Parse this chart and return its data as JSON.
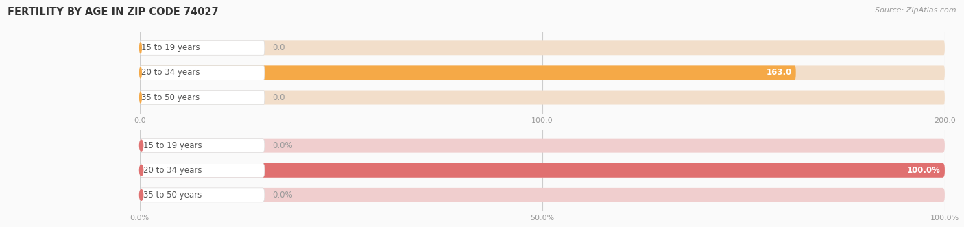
{
  "title": "FERTILITY BY AGE IN ZIP CODE 74027",
  "source_text": "Source: ZipAtlas.com",
  "chart1": {
    "categories": [
      "15 to 19 years",
      "20 to 34 years",
      "35 to 50 years"
    ],
    "values": [
      0.0,
      163.0,
      0.0
    ],
    "xlim": [
      0,
      200
    ],
    "xticks": [
      0.0,
      100.0,
      200.0
    ],
    "xtick_labels": [
      "0.0",
      "100.0",
      "200.0"
    ],
    "bar_color": "#F5A947",
    "bar_bg_color": "#F2DECA",
    "label_bg_color": "#FFFFFF",
    "label_color": "#555555",
    "value_color": "#999999",
    "dot_color": "#F5A947"
  },
  "chart2": {
    "categories": [
      "15 to 19 years",
      "20 to 34 years",
      "35 to 50 years"
    ],
    "values": [
      0.0,
      100.0,
      0.0
    ],
    "xlim": [
      0,
      100
    ],
    "xticks": [
      0.0,
      50.0,
      100.0
    ],
    "xtick_labels": [
      "0.0%",
      "50.0%",
      "100.0%"
    ],
    "bar_color": "#E07070",
    "bar_bg_color": "#F0CECE",
    "label_bg_color": "#FFFFFF",
    "label_color": "#555555",
    "value_color": "#999999",
    "dot_color": "#E07070"
  },
  "bg_color": "#FAFAFA",
  "fig_width": 14.06,
  "fig_height": 3.31,
  "dpi": 100
}
